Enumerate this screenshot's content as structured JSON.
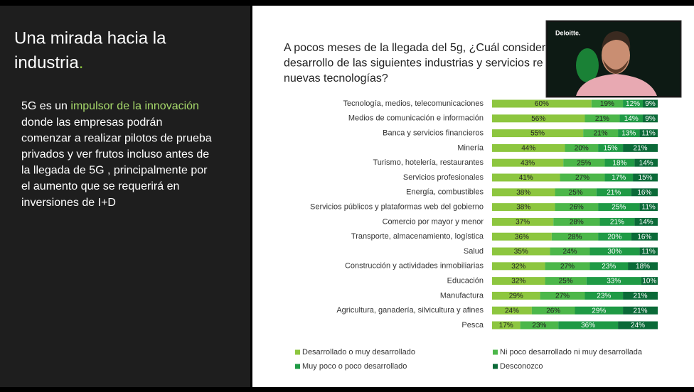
{
  "slide": {
    "heading": [
      "Una mirada hacia la",
      "industria",
      "."
    ],
    "body": {
      "prefix": "5G es un",
      "highlight": "impulsor de la innovación",
      "lines": [
        "donde las empresas podrán",
        "comenzar a realizar pilotos de prueba",
        "privados y ver frutos incluso antes de",
        "la llegada de 5G , principalmente por",
        "el aumento que se requerirá en",
        "inversiones de I+D"
      ]
    },
    "webcam_logo": "Deloitte."
  },
  "chart_data": {
    "type": "bar",
    "orientation": "horizontal",
    "stacked": true,
    "title": [
      "A pocos meses de la llegada del 5g, ¿Cuál consider",
      "desarrollo de las siguientes industrias y servicios re",
      "nuevas tecnologías?"
    ],
    "categories": [
      "Tecnología, medios, telecomunicaciones",
      "Medios de comunicación e información",
      "Banca y servicios financieros",
      "Minería",
      "Turismo, hotelería, restaurantes",
      "Servicios profesionales",
      "Energía, combustibles",
      "Servicios públicos y plataformas web del gobierno",
      "Comercio por mayor y menor",
      "Transporte, almacenamiento, logística",
      "Salud",
      "Construcción y actividades inmobiliarias",
      "Educación",
      "Manufactura",
      "Agricultura, ganadería, silvicultura y afines",
      "Pesca"
    ],
    "series": [
      {
        "name": "Desarrollado o muy desarrollado",
        "color": "#8dc63f",
        "values": [
          60,
          56,
          55,
          44,
          43,
          41,
          38,
          38,
          37,
          36,
          35,
          32,
          32,
          29,
          24,
          17
        ],
        "value_labels": [
          "60%",
          "56%",
          "55%",
          "44%",
          "43%",
          "41%",
          "38%",
          "38%",
          "37%",
          "36%",
          "35%",
          "32%",
          "32%",
          "29%",
          "24%",
          "17%"
        ]
      },
      {
        "name": "Ni poco desarrollado ni muy desarrollada",
        "color": "#4cb74a",
        "values": [
          19,
          21,
          21,
          20,
          25,
          27,
          25,
          26,
          28,
          28,
          24,
          27,
          25,
          27,
          26,
          23
        ],
        "value_labels": [
          "19%",
          "21%",
          "21%",
          "20%",
          "25%",
          "27%",
          "25%",
          "26%",
          "28%",
          "28%",
          "24%",
          "27%",
          "25%",
          "27%",
          "26%",
          "23%"
        ]
      },
      {
        "name": "Muy poco o poco desarrollado",
        "color": "#1f9a45",
        "values": [
          12,
          14,
          13,
          15,
          18,
          17,
          21,
          25,
          21,
          20,
          30,
          23,
          33,
          23,
          29,
          36
        ],
        "value_labels": [
          "12%",
          "14%",
          "13%",
          "15%",
          "18%",
          "17%",
          "21%",
          "25%",
          "21%",
          "20%",
          "30%",
          "23%",
          "33%",
          "23%",
          "29%",
          "36%"
        ]
      },
      {
        "name": "Desconozco",
        "color": "#0b6a38",
        "values": [
          9,
          9,
          11,
          21,
          14,
          15,
          16,
          11,
          14,
          16,
          11,
          18,
          10,
          21,
          21,
          24
        ],
        "value_labels": [
          "9%",
          "9%",
          "11%",
          "21%",
          "14%",
          "15%",
          "16%",
          "11%",
          "14%",
          "16%",
          "11%",
          "18%",
          "10%",
          "21%",
          "21%",
          "24%"
        ]
      }
    ]
  }
}
